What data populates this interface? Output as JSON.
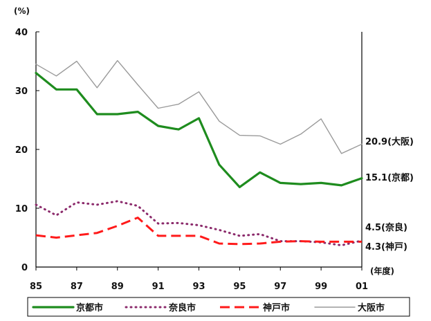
{
  "chart_data": {
    "type": "line",
    "title": "",
    "ylabel": "(%)",
    "xlabel": "(年度)",
    "ylim": [
      0,
      40
    ],
    "xlim": [
      1985,
      2001
    ],
    "yticks": [
      0,
      10,
      20,
      30,
      40
    ],
    "xticks": [
      1985,
      1987,
      1989,
      1991,
      1993,
      1995,
      1997,
      1999,
      2001
    ],
    "xtick_labels": [
      "85",
      "87",
      "89",
      "91",
      "93",
      "95",
      "97",
      "99",
      "01"
    ],
    "grid": false,
    "legend_position": "bottom",
    "x": [
      1985,
      1986,
      1987,
      1988,
      1989,
      1990,
      1991,
      1992,
      1993,
      1994,
      1995,
      1996,
      1997,
      1998,
      1999,
      2000,
      2001
    ],
    "series": [
      {
        "name": "京都市",
        "color": "#1e8c1e",
        "style": "solid-thick",
        "values": [
          33.0,
          30.2,
          30.2,
          26.0,
          26.0,
          26.4,
          24.0,
          23.4,
          25.3,
          17.4,
          13.6,
          16.1,
          14.3,
          14.1,
          14.3,
          13.9,
          15.1
        ],
        "end_label": "15.1(京都)"
      },
      {
        "name": "奈良市",
        "color": "#8b2a6b",
        "style": "dotted",
        "values": [
          10.6,
          8.8,
          11.0,
          10.6,
          11.2,
          10.4,
          7.4,
          7.5,
          7.1,
          6.3,
          5.3,
          5.6,
          4.4,
          4.4,
          4.2,
          3.7,
          4.5
        ],
        "end_label": "4.5(奈良)"
      },
      {
        "name": "神戸市",
        "color": "#ff1a1a",
        "style": "dashed",
        "values": [
          5.4,
          5.0,
          5.4,
          5.8,
          7.0,
          8.4,
          5.3,
          5.3,
          5.3,
          4.0,
          3.9,
          4.0,
          4.3,
          4.4,
          4.3,
          4.3,
          4.3
        ],
        "end_label": "4.3(神戸)"
      },
      {
        "name": "大阪市",
        "color": "#9a9a9a",
        "style": "solid-thin",
        "values": [
          34.5,
          32.5,
          35.0,
          30.5,
          35.1,
          31.0,
          27.0,
          27.7,
          29.8,
          24.8,
          22.4,
          22.3,
          20.9,
          22.6,
          25.2,
          19.3,
          20.9
        ],
        "end_label": "20.9(大阪)"
      }
    ]
  }
}
